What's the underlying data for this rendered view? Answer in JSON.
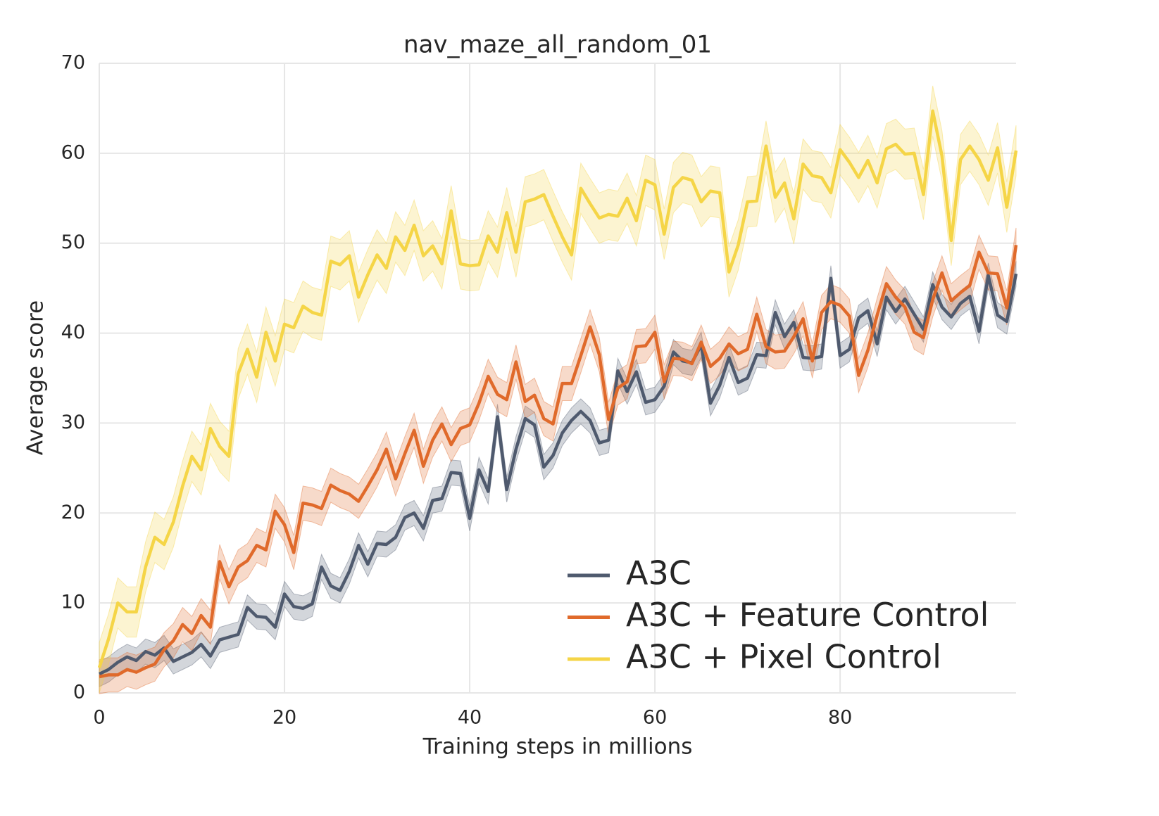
{
  "chart_data": {
    "type": "line",
    "title": "nav_maze_all_random_01",
    "x_label": "Training steps in millions",
    "y_label": "Average score",
    "x": [
      0,
      1,
      2,
      3,
      4,
      5,
      6,
      7,
      8,
      9,
      10,
      11,
      12,
      13,
      14,
      15,
      16,
      17,
      18,
      19,
      20,
      21,
      22,
      23,
      24,
      25,
      26,
      27,
      28,
      29,
      30,
      31,
      32,
      33,
      34,
      35,
      36,
      37,
      38,
      39,
      40,
      41,
      42,
      43,
      44,
      45,
      46,
      47,
      48,
      49,
      50,
      51,
      52,
      53,
      54,
      55,
      56,
      57,
      58,
      59,
      60,
      61,
      62,
      63,
      64,
      65,
      66,
      67,
      68,
      69,
      70,
      71,
      72,
      73,
      74,
      75,
      76,
      77,
      78,
      79,
      80,
      81,
      82,
      83,
      84,
      85,
      86,
      87,
      88,
      89,
      90,
      91,
      92,
      93,
      94,
      95,
      96,
      97,
      98,
      99
    ],
    "series": [
      {
        "name": "A3C",
        "color": "#4f5a6e",
        "error": 1.4,
        "values": [
          2.1,
          2.6,
          3.4,
          4,
          3.6,
          4.6,
          4.2,
          5,
          3.5,
          4,
          4.5,
          5.4,
          4.1,
          5.9,
          6.2,
          6.5,
          9.5,
          8.5,
          8.4,
          7.3,
          11,
          9.6,
          9.4,
          9.9,
          14,
          11.9,
          11.4,
          13.5,
          16.4,
          14.3,
          16.6,
          16.5,
          17.3,
          19.5,
          20,
          18.3,
          21.4,
          21.6,
          24.5,
          24.4,
          19.4,
          24.8,
          22.4,
          30.7,
          22.6,
          27.1,
          30.5,
          29.8,
          25.1,
          26.4,
          28.9,
          30.3,
          31.3,
          30.3,
          27.8,
          28.1,
          35.8,
          33.5,
          35.7,
          32.3,
          32.6,
          34.1,
          37.9,
          36.9,
          36.7,
          38.7,
          32.2,
          34.2,
          37.3,
          34.5,
          35,
          37.6,
          37.5,
          42.3,
          39.6,
          41.2,
          37.3,
          37.2,
          37.4,
          46.1,
          37.5,
          38.2,
          41.7,
          42.5,
          38.8,
          44,
          42.4,
          43.8,
          42.1,
          40.4,
          45.4,
          42.9,
          41.8,
          43.3,
          44.1,
          40.2,
          46.4,
          42,
          41.3,
          46.6
        ]
      },
      {
        "name": "A3C + Feature Control",
        "color": "#e06a2b",
        "error": 1.9,
        "values": [
          1.8,
          2,
          2,
          2.6,
          2.3,
          2.8,
          3.2,
          4.8,
          5.8,
          7.6,
          6.6,
          8.6,
          7.3,
          14.6,
          11.8,
          14,
          14.7,
          16.4,
          15.9,
          20.2,
          18.7,
          15.6,
          21.1,
          20.9,
          20.5,
          23.1,
          22.5,
          22.1,
          21.3,
          23,
          24.8,
          27.1,
          23.8,
          26.6,
          29.2,
          25.2,
          28.1,
          29.9,
          27.6,
          29.4,
          29.8,
          32.2,
          35.2,
          33.2,
          32.6,
          36.8,
          32.4,
          33.1,
          30.5,
          29.9,
          34.4,
          34.4,
          37.5,
          40.7,
          37.6,
          30.4,
          33.9,
          34.6,
          38.5,
          38.6,
          40.1,
          34.6,
          37.2,
          37.1,
          36.6,
          39,
          36.3,
          37.2,
          38.8,
          37.7,
          38.2,
          42.1,
          38.5,
          37.9,
          38,
          39.6,
          41.6,
          36.9,
          42.3,
          43.5,
          43.1,
          41.9,
          35.3,
          38.1,
          42,
          45.5,
          44,
          42.9,
          40.1,
          39.5,
          43.7,
          46.7,
          43.6,
          44.5,
          45.3,
          49,
          46.7,
          46.6,
          42.8,
          49.8
        ]
      },
      {
        "name": "A3C + Pixel Control",
        "color": "#f5d547",
        "error": 2.8,
        "values": [
          2.8,
          6,
          10,
          9,
          9,
          14,
          17.3,
          16.5,
          19,
          23,
          26.3,
          24.8,
          29.4,
          27.4,
          26.3,
          35.5,
          38.2,
          35.1,
          40.1,
          36.9,
          41,
          40.6,
          43,
          42.3,
          42,
          48,
          47.6,
          48.6,
          44,
          46.5,
          48.7,
          47.2,
          50.7,
          49.2,
          52,
          48.6,
          49.7,
          47.7,
          53.6,
          47.7,
          47.5,
          47.6,
          50.8,
          49,
          53.4,
          49,
          54.6,
          54.9,
          55.4,
          53,
          50.7,
          48.7,
          56.1,
          54.4,
          52.8,
          53.2,
          53,
          55,
          52.5,
          57,
          56.5,
          51,
          56.2,
          57.3,
          57,
          54.6,
          55.8,
          55.6,
          46.8,
          49.8,
          54.6,
          54.7,
          60.8,
          55.1,
          56.7,
          52.7,
          58.8,
          57.5,
          57.3,
          55.6,
          60.4,
          59,
          57.3,
          59.2,
          56.7,
          60.5,
          61,
          59.9,
          60,
          55.4,
          64.7,
          59.7,
          50.3,
          59.3,
          60.8,
          59.3,
          57,
          60.6,
          54,
          60.3
        ]
      }
    ],
    "xlim": [
      0,
      99
    ],
    "ylim": [
      0,
      70
    ],
    "xticks": [
      0,
      20,
      40,
      60,
      80
    ],
    "yticks": [
      0,
      10,
      20,
      30,
      40,
      50,
      60,
      70
    ],
    "grid": true,
    "legend": "lower right"
  }
}
